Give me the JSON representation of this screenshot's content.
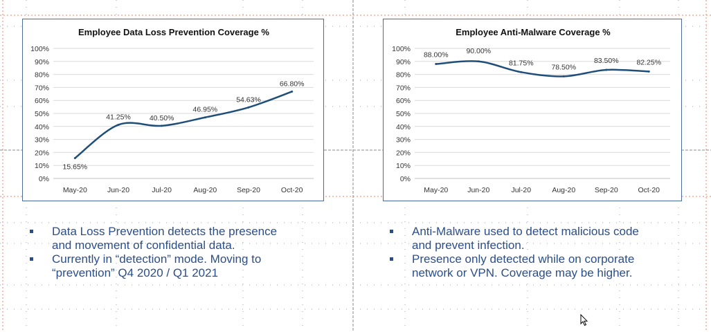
{
  "colors": {
    "line": "#1f4e79",
    "frame": "#4a6a9a",
    "text_blue": "#2a4e8a",
    "grid": "#d9d9d9"
  },
  "icons": {
    "cursor": "mouse-pointer-icon"
  },
  "chart_data": [
    {
      "type": "line",
      "title": "Employee Data Loss Prevention Coverage %",
      "categories": [
        "May-20",
        "Jun-20",
        "Jul-20",
        "Aug-20",
        "Sep-20",
        "Oct-20"
      ],
      "values": [
        15.65,
        41.25,
        40.5,
        46.95,
        54.63,
        66.8
      ],
      "data_labels": [
        "15.65%",
        "41.25%",
        "40.50%",
        "46.95%",
        "54.63%",
        "66.80%"
      ],
      "ylim": [
        0,
        100
      ],
      "y_ticks": [
        "0%",
        "10%",
        "20%",
        "30%",
        "40%",
        "50%",
        "60%",
        "70%",
        "80%",
        "90%",
        "100%"
      ],
      "grid": true,
      "smooth": true
    },
    {
      "type": "line",
      "title": "Employee Anti-Malware Coverage %",
      "categories": [
        "May-20",
        "Jun-20",
        "Jul-20",
        "Aug-20",
        "Sep-20",
        "Oct-20"
      ],
      "values": [
        88.0,
        90.0,
        81.75,
        78.5,
        83.5,
        82.25
      ],
      "data_labels": [
        "88.00%",
        "90.00%",
        "81.75%",
        "78.50%",
        "83.50%",
        "82.25%"
      ],
      "ylim": [
        0,
        100
      ],
      "y_ticks": [
        "0%",
        "10%",
        "20%",
        "30%",
        "40%",
        "50%",
        "60%",
        "70%",
        "80%",
        "90%",
        "100%"
      ],
      "grid": true,
      "smooth": true
    }
  ],
  "bullets_left": [
    {
      "text_line1": "Data Loss Prevention detects the presence",
      "text_line2": "and movement of confidential data."
    },
    {
      "text_line1": "Currently in “detection” mode. Moving to",
      "text_line2": "“prevention” Q4 2020 / Q1 2021"
    }
  ],
  "bullets_right": [
    {
      "text_line1": "Anti-Malware used to detect malicious code",
      "text_line2": "and prevent infection."
    },
    {
      "text_line1": "Presence only detected while on corporate",
      "text_line2": "network or VPN. Coverage may be higher."
    }
  ]
}
